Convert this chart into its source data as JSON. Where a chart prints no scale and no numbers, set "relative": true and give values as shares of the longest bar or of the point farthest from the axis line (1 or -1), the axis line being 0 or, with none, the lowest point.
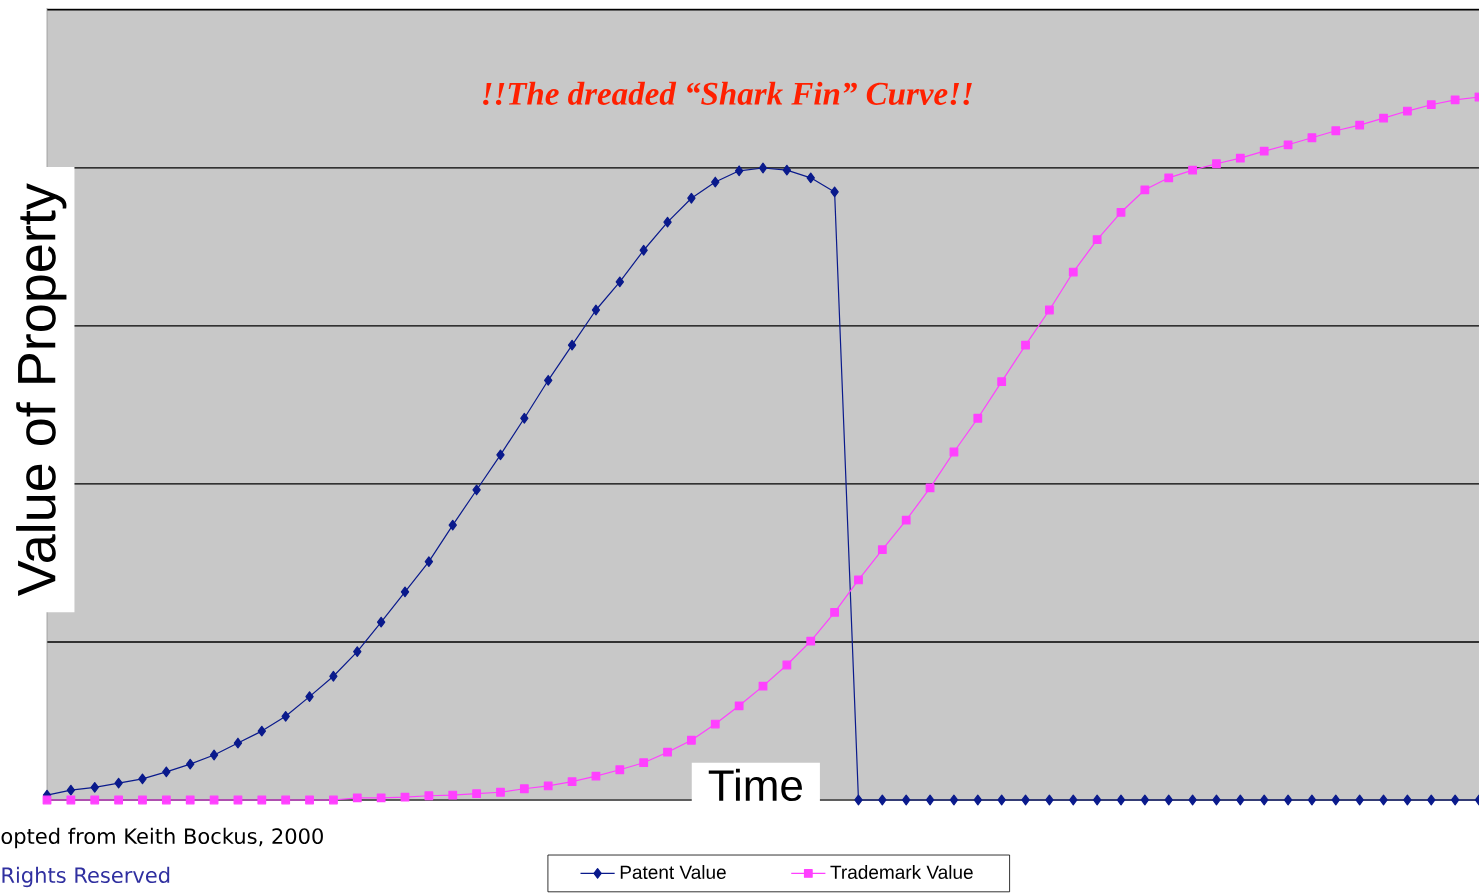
{
  "chart_data": {
    "type": "line",
    "title": "!!The dreaded “Shark Fin” Curve!!",
    "xlabel": "Time",
    "ylabel": "Value of Property",
    "annotations": [
      "opted from Keith Bockus, 2000",
      "Rights Reserved"
    ],
    "categories": [
      null,
      null,
      null,
      null,
      null,
      null,
      null,
      null,
      null,
      null,
      null,
      null,
      null,
      null,
      null,
      null,
      null,
      null,
      null,
      null,
      null,
      null,
      null,
      null,
      null,
      null,
      null,
      null,
      null,
      null,
      null,
      null,
      null,
      null,
      null,
      null,
      null,
      null,
      null,
      null,
      null,
      null,
      null,
      null,
      null,
      null,
      null,
      null,
      null,
      null,
      null,
      null,
      null,
      null,
      null,
      null,
      null,
      null,
      null,
      null,
      null
    ],
    "relative": true,
    "grid": "y",
    "legend": "bottom",
    "line_style": "solid",
    "series": [
      {
        "name": "Patent Value",
        "color": "#0a1a8c",
        "marker": "diamond",
        "values": [
          0.007,
          0.014,
          0.018,
          0.024,
          0.03,
          0.04,
          0.051,
          0.064,
          0.081,
          0.098,
          0.119,
          0.147,
          0.176,
          0.211,
          0.253,
          0.296,
          0.339,
          0.391,
          0.441,
          0.491,
          0.543,
          0.597,
          0.647,
          0.697,
          0.737,
          0.782,
          0.822,
          0.856,
          0.879,
          0.895,
          0.899,
          0.896,
          0.885,
          0.865,
          0,
          0,
          0,
          0,
          0,
          0,
          0,
          0,
          0,
          0,
          0,
          0,
          0,
          0,
          0,
          0,
          0,
          0,
          0,
          0,
          0,
          0,
          0,
          0,
          0,
          0,
          0
        ]
      },
      {
        "name": "Trademark Value",
        "color": "#ff40ff",
        "marker": "square",
        "values": [
          0,
          0,
          0,
          0,
          0,
          0,
          0,
          0,
          0,
          0,
          0,
          0,
          0,
          0.003,
          0.003,
          0.004,
          0.006,
          0.007,
          0.009,
          0.011,
          0.016,
          0.02,
          0.026,
          0.034,
          0.043,
          0.053,
          0.068,
          0.085,
          0.108,
          0.134,
          0.162,
          0.192,
          0.226,
          0.267,
          0.313,
          0.356,
          0.398,
          0.444,
          0.495,
          0.543,
          0.595,
          0.647,
          0.697,
          0.751,
          0.797,
          0.836,
          0.868,
          0.885,
          0.896,
          0.905,
          0.913,
          0.923,
          0.932,
          0.942,
          0.952,
          0.96,
          0.97,
          0.98,
          0.989,
          0.996,
          1.0
        ]
      }
    ]
  }
}
